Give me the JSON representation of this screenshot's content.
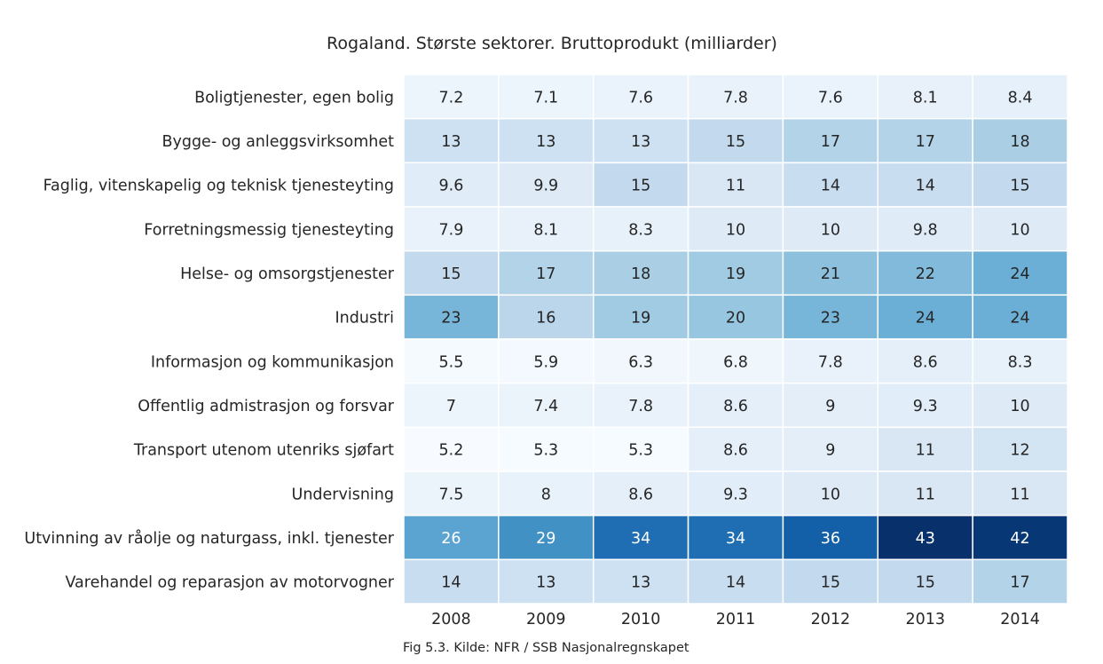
{
  "chart_data": {
    "type": "heatmap",
    "title": "Rogaland. Største sektorer. Bruttoprodukt (milliarder)",
    "caption": "Fig 5.3. Kilde: NFR / SSB Nasjonalregnskapet",
    "x": [
      "2008",
      "2009",
      "2010",
      "2011",
      "2012",
      "2013",
      "2014"
    ],
    "y": [
      "Boligtjenester, egen bolig",
      "Bygge- og anleggsvirksomhet",
      "Faglig, vitenskapelig og teknisk tjenesteyting",
      "Forretningsmessig tjenesteyting",
      "Helse- og omsorgstjenester",
      "Industri",
      "Informasjon og kommunikasjon",
      "Offentlig admistrasjon og forsvar",
      "Transport utenom utenriks sjøfart",
      "Undervisning",
      "Utvinning av råolje og naturgass, inkl. tjenester",
      "Varehandel og reparasjon av motorvogner"
    ],
    "values": [
      [
        7.2,
        7.1,
        7.6,
        7.8,
        7.6,
        8.1,
        8.4
      ],
      [
        13,
        13,
        13,
        15,
        17,
        17,
        18
      ],
      [
        9.6,
        9.9,
        15,
        11,
        14,
        14,
        15
      ],
      [
        7.9,
        8.1,
        8.3,
        10,
        10,
        9.8,
        10
      ],
      [
        15,
        17,
        18,
        19,
        21,
        22,
        24
      ],
      [
        23,
        16,
        19,
        20,
        23,
        24,
        24
      ],
      [
        5.5,
        5.9,
        6.3,
        6.8,
        7.8,
        8.6,
        8.3
      ],
      [
        7,
        7.4,
        7.8,
        8.6,
        9,
        9.3,
        10
      ],
      [
        5.2,
        5.3,
        5.3,
        8.6,
        9,
        11,
        12
      ],
      [
        7.5,
        8,
        8.6,
        9.3,
        10,
        11,
        11
      ],
      [
        26,
        29,
        34,
        34,
        36,
        43,
        42
      ],
      [
        14,
        13,
        13,
        14,
        15,
        15,
        17
      ]
    ],
    "value_labels": [
      [
        "7.2",
        "7.1",
        "7.6",
        "7.8",
        "7.6",
        "8.1",
        "8.4"
      ],
      [
        "13",
        "13",
        "13",
        "15",
        "17",
        "17",
        "18"
      ],
      [
        "9.6",
        "9.9",
        "15",
        "11",
        "14",
        "14",
        "15"
      ],
      [
        "7.9",
        "8.1",
        "8.3",
        "10",
        "10",
        "9.8",
        "10"
      ],
      [
        "15",
        "17",
        "18",
        "19",
        "21",
        "22",
        "24"
      ],
      [
        "23",
        "16",
        "19",
        "20",
        "23",
        "24",
        "24"
      ],
      [
        "5.5",
        "5.9",
        "6.3",
        "6.8",
        "7.8",
        "8.6",
        "8.3"
      ],
      [
        "7",
        "7.4",
        "7.8",
        "8.6",
        "9",
        "9.3",
        "10"
      ],
      [
        "5.2",
        "5.3",
        "5.3",
        "8.6",
        "9",
        "11",
        "12"
      ],
      [
        "7.5",
        "8",
        "8.6",
        "9.3",
        "10",
        "11",
        "11"
      ],
      [
        "26",
        "29",
        "34",
        "34",
        "36",
        "43",
        "42"
      ],
      [
        "14",
        "13",
        "13",
        "14",
        "15",
        "15",
        "17"
      ]
    ],
    "colormap": "Blues",
    "value_range": [
      5.2,
      43
    ],
    "grid": false,
    "colorbar": false
  }
}
